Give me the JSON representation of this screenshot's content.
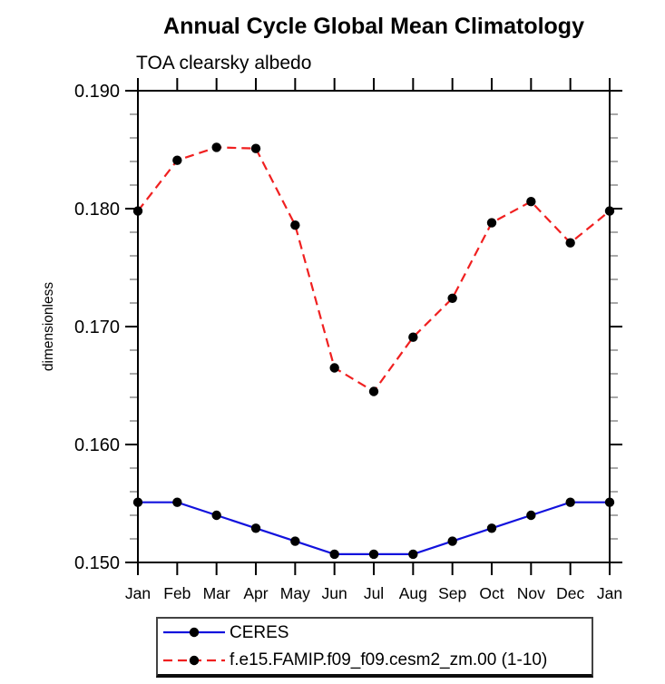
{
  "chart_data": {
    "type": "line",
    "title": "Annual Cycle Global Mean Climatology",
    "subtitle": "TOA clearsky albedo",
    "ylabel": "dimensionless",
    "xlabel": "",
    "categories": [
      "Jan",
      "Feb",
      "Mar",
      "Apr",
      "May",
      "Jun",
      "Jul",
      "Aug",
      "Sep",
      "Oct",
      "Nov",
      "Dec",
      "Jan"
    ],
    "ylim": [
      0.15,
      0.19
    ],
    "yticks": {
      "values": [
        0.15,
        0.16,
        0.17,
        0.18,
        0.19
      ],
      "labels": [
        "0.150",
        "0.160",
        "0.170",
        "0.180",
        "0.190"
      ],
      "minor_step": 0.002
    },
    "grid": false,
    "legend_position": "bottom-left",
    "axis_color": "#000000",
    "minor_tick_color": "#8c8c8c",
    "series": [
      {
        "name": "CERES",
        "color": "#1212dd",
        "line_style": "solid",
        "marker": "filled-circle",
        "marker_color": "#000000",
        "values": [
          0.1551,
          0.1551,
          0.154,
          0.1529,
          0.1518,
          0.1507,
          0.1507,
          0.1507,
          0.1518,
          0.1529,
          0.154,
          0.1551,
          0.1551
        ]
      },
      {
        "name": "f.e15.FAMIP.f09_f09.cesm2_zm.00 (1-10)",
        "color": "#f02020",
        "line_style": "dashed",
        "marker": "filled-circle",
        "marker_color": "#000000",
        "values": [
          0.1798,
          0.1841,
          0.1852,
          0.1851,
          0.1786,
          0.1665,
          0.1645,
          0.1691,
          0.1724,
          0.1788,
          0.1806,
          0.1771,
          0.1798
        ]
      }
    ]
  }
}
